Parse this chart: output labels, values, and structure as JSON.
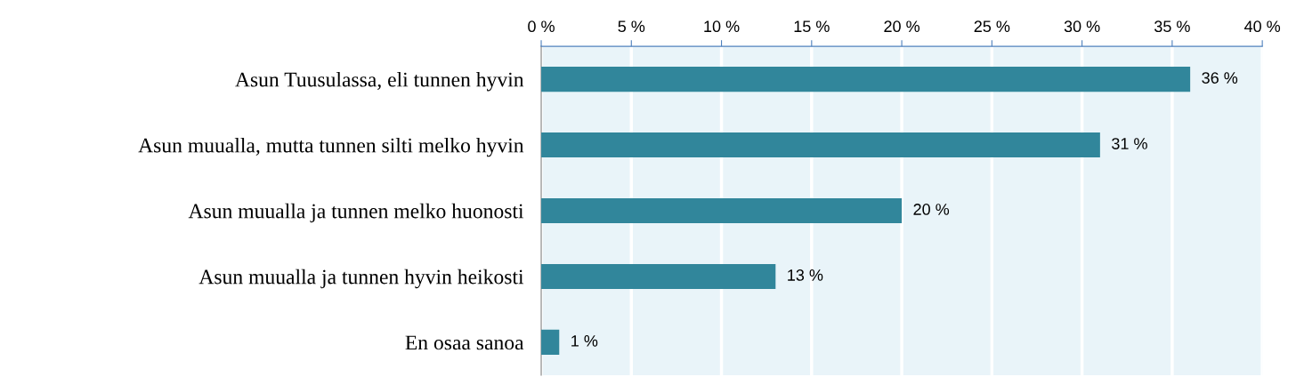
{
  "chart_data": {
    "type": "bar",
    "orientation": "horizontal",
    "categories": [
      "Asun Tuusulassa, eli tunnen hyvin",
      "Asun muualla, mutta tunnen silti melko hyvin",
      "Asun muualla ja tunnen melko huonosti",
      "Asun muualla ja tunnen hyvin heikosti",
      "En osaa sanoa"
    ],
    "values": [
      36,
      31,
      20,
      13,
      1
    ],
    "value_labels": [
      "36 %",
      "31 %",
      "20 %",
      "13 %",
      "1 %"
    ],
    "color": "#31869b",
    "xlim": [
      0,
      40
    ],
    "xticks": [
      {
        "value": 0,
        "label": "0 %"
      },
      {
        "value": 5,
        "label": "5 %"
      },
      {
        "value": 10,
        "label": "10 %"
      },
      {
        "value": 15,
        "label": "15 %"
      },
      {
        "value": 20,
        "label": "20 %"
      },
      {
        "value": 25,
        "label": "25 %"
      },
      {
        "value": 30,
        "label": "30 %"
      },
      {
        "value": 35,
        "label": "35 %"
      },
      {
        "value": 40,
        "label": "40 %"
      }
    ],
    "grid": "x"
  }
}
